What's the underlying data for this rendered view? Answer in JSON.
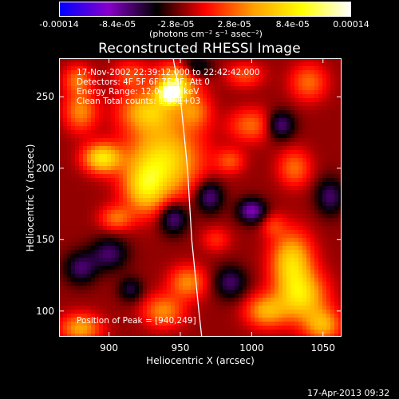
{
  "chart_data": {
    "type": "heatmap",
    "title": "Reconstructed RHESSI Image",
    "xlabel": "Heliocentric X (arcsec)",
    "ylabel": "Heliocentric Y (arcsec)",
    "xlim": [
      865,
      1063
    ],
    "ylim": [
      82,
      277
    ],
    "x_ticks": [
      900,
      950,
      1000,
      1050
    ],
    "y_ticks": [
      100,
      150,
      200,
      250
    ],
    "colorbar": {
      "ticks": [
        "-0.00014",
        "-8.4e-05",
        "-2.8e-05",
        "2.8e-05",
        "8.4e-05",
        "0.00014"
      ],
      "units": "(photons cm⁻² s⁻¹ asec⁻²)",
      "range": [
        -0.00014,
        0.00014
      ],
      "colormap": [
        "#0000ff",
        "#8800cc",
        "#000000",
        "#ff0000",
        "#ffa000",
        "#ffff00",
        "#ffffff"
      ]
    },
    "annotations": {
      "time_range": "17-Nov-2002 22:39:12.000 to 22:42:42.000",
      "detectors": "Detectors: 4F 5F 6F 7F 8F, Att 0",
      "energy": "Energy Range: 12.0-25.0 keV",
      "clean": "Clean     Total counts: 1.86E+03",
      "peak": "Position of Peak = [940,249]"
    },
    "peak": [
      940,
      249
    ],
    "limb_curve": [
      [
        945,
        277
      ],
      [
        950,
        250
      ],
      [
        955,
        200
      ],
      [
        958,
        150
      ],
      [
        963,
        100
      ],
      [
        965,
        82
      ]
    ],
    "sources": [
      {
        "x": 943,
        "y": 252,
        "sx": 6,
        "sy": 5,
        "a": 0.00014
      },
      {
        "x": 948,
        "y": 262,
        "sx": 10,
        "sy": 8,
        "a": 9e-05
      },
      {
        "x": 928,
        "y": 240,
        "sx": 14,
        "sy": 10,
        "a": 8e-05
      },
      {
        "x": 915,
        "y": 265,
        "sx": 9,
        "sy": 7,
        "a": 4e-05
      },
      {
        "x": 938,
        "y": 205,
        "sx": 18,
        "sy": 18,
        "a": 0.0001
      },
      {
        "x": 925,
        "y": 185,
        "sx": 10,
        "sy": 12,
        "a": 7e-05
      },
      {
        "x": 895,
        "y": 207,
        "sx": 9,
        "sy": 7,
        "a": 0.0001
      },
      {
        "x": 880,
        "y": 240,
        "sx": 8,
        "sy": 10,
        "a": 6e-05
      },
      {
        "x": 878,
        "y": 262,
        "sx": 7,
        "sy": 7,
        "a": 5e-05
      },
      {
        "x": 905,
        "y": 165,
        "sx": 8,
        "sy": 6,
        "a": 5e-05
      },
      {
        "x": 960,
        "y": 240,
        "sx": 8,
        "sy": 9,
        "a": 5e-05
      },
      {
        "x": 1000,
        "y": 230,
        "sx": 11,
        "sy": 8,
        "a": 5e-05
      },
      {
        "x": 995,
        "y": 265,
        "sx": 9,
        "sy": 6,
        "a": 4e-05
      },
      {
        "x": 1040,
        "y": 260,
        "sx": 9,
        "sy": 9,
        "a": 5e-05
      },
      {
        "x": 1030,
        "y": 200,
        "sx": 8,
        "sy": 9,
        "a": 5e-05
      },
      {
        "x": 985,
        "y": 205,
        "sx": 7,
        "sy": 6,
        "a": 4e-05
      },
      {
        "x": 1028,
        "y": 135,
        "sx": 10,
        "sy": 14,
        "a": 9e-05
      },
      {
        "x": 1035,
        "y": 110,
        "sx": 12,
        "sy": 12,
        "a": 9e-05
      },
      {
        "x": 1010,
        "y": 100,
        "sx": 10,
        "sy": 8,
        "a": 7e-05
      },
      {
        "x": 1050,
        "y": 90,
        "sx": 9,
        "sy": 8,
        "a": 7e-05
      },
      {
        "x": 955,
        "y": 120,
        "sx": 9,
        "sy": 8,
        "a": 6e-05
      },
      {
        "x": 938,
        "y": 100,
        "sx": 10,
        "sy": 8,
        "a": 6e-05
      },
      {
        "x": 880,
        "y": 88,
        "sx": 10,
        "sy": 7,
        "a": 7e-05
      },
      {
        "x": 975,
        "y": 150,
        "sx": 7,
        "sy": 6,
        "a": 3e-05
      },
      {
        "x": 1015,
        "y": 160,
        "sx": 6,
        "sy": 6,
        "a": 3e-05
      },
      {
        "x": 970,
        "y": 180,
        "sx": 7,
        "sy": 8,
        "a": -6e-05
      },
      {
        "x": 1000,
        "y": 170,
        "sx": 7,
        "sy": 6,
        "a": -7e-05
      },
      {
        "x": 945,
        "y": 165,
        "sx": 7,
        "sy": 8,
        "a": -6e-05
      },
      {
        "x": 1020,
        "y": 230,
        "sx": 7,
        "sy": 7,
        "a": -6e-05
      },
      {
        "x": 985,
        "y": 120,
        "sx": 8,
        "sy": 8,
        "a": -5e-05
      },
      {
        "x": 900,
        "y": 140,
        "sx": 9,
        "sy": 8,
        "a": -5e-05
      },
      {
        "x": 960,
        "y": 270,
        "sx": 8,
        "sy": 6,
        "a": -5e-05
      },
      {
        "x": 880,
        "y": 130,
        "sx": 8,
        "sy": 8,
        "a": -5e-05
      },
      {
        "x": 915,
        "y": 115,
        "sx": 6,
        "sy": 6,
        "a": -4e-05
      },
      {
        "x": 1055,
        "y": 180,
        "sx": 7,
        "sy": 9,
        "a": -5e-05
      }
    ]
  },
  "footer": {
    "date": "17-Apr-2013 09:32"
  }
}
